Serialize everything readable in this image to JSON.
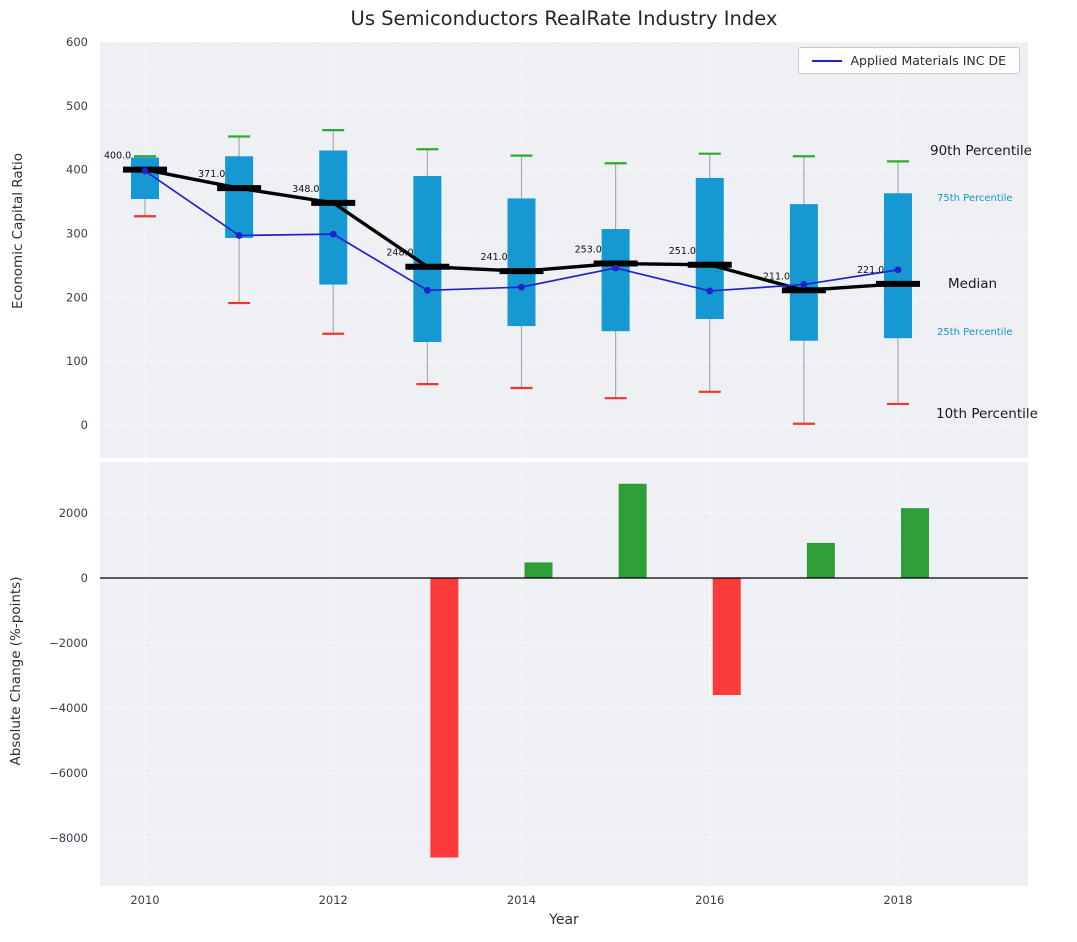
{
  "title": "Us Semiconductors RealRate Industry Index",
  "xlabel": "Year",
  "panels": {
    "top": {
      "ylabel": "Economic Capital Ratio"
    },
    "bottom": {
      "ylabel": "Absolute Change (%-points)"
    }
  },
  "legend": {
    "series_label": "Applied Materials INC DE"
  },
  "annotations": {
    "p90": "90th Percentile",
    "p75": "75th Percentile",
    "median": "Median",
    "p25": "25th Percentile",
    "p10": "10th Percentile"
  },
  "colors": {
    "panel_bg": "#eef0f4",
    "grid": "#ffffff",
    "box_fill": "#1699d3",
    "cap_high": "#2fab30",
    "cap_low": "#e8382f",
    "whisker": "#aaaaaa",
    "median_line": "#000000",
    "company_line": "#2222cc",
    "bar_positive": "#2e9e38",
    "bar_negative": "#fb3b3b",
    "tick_text": "#3d3d50",
    "annotation_small": "#1a93c8"
  },
  "chart_data": [
    {
      "type": "boxplot-line",
      "title": "Us Semiconductors RealRate Industry Index",
      "ylabel": "Economic Capital Ratio",
      "ylim": [
        -50,
        600
      ],
      "yticks": [
        600,
        500,
        400,
        300,
        200,
        100,
        0
      ],
      "xticks": [
        2010,
        2012,
        2014,
        2016,
        2018
      ],
      "grid": true,
      "legend_position": "upper right",
      "years": [
        2010,
        2011,
        2012,
        2013,
        2014,
        2015,
        2016,
        2017,
        2018
      ],
      "p90": [
        421,
        452,
        462,
        432,
        422,
        410,
        425,
        421,
        413
      ],
      "p75": [
        419,
        421,
        430,
        390,
        355,
        307,
        387,
        346,
        363
      ],
      "median": [
        400,
        371,
        348,
        248,
        241,
        253,
        251,
        211,
        221
      ],
      "median_labels": [
        "400.0",
        "371.0",
        "348.0",
        "248.0",
        "241.0",
        "253.0",
        "251.0",
        "211.0",
        "221.0"
      ],
      "p25": [
        354,
        293,
        220,
        130,
        155,
        147,
        166,
        132,
        136
      ],
      "p10": [
        327,
        191,
        143,
        64,
        58,
        42,
        52,
        2,
        33
      ],
      "series": [
        {
          "name": "Applied Materials INC DE",
          "values": [
            398,
            297,
            299,
            211,
            216,
            246,
            210,
            220,
            243
          ]
        }
      ]
    },
    {
      "type": "bar",
      "xlabel": "Year",
      "ylabel": "Absolute Change (%-points)",
      "ylim": [
        -9500,
        3600
      ],
      "yticks": [
        2000,
        0,
        -2000,
        -4000,
        -6000,
        -8000
      ],
      "xticks": [
        2010,
        2012,
        2014,
        2016,
        2018
      ],
      "grid": true,
      "years": [
        2010,
        2011,
        2012,
        2013,
        2014,
        2015,
        2016,
        2017,
        2018
      ],
      "values": [
        null,
        null,
        null,
        -8600,
        480,
        2900,
        -3600,
        1080,
        2150
      ]
    }
  ]
}
